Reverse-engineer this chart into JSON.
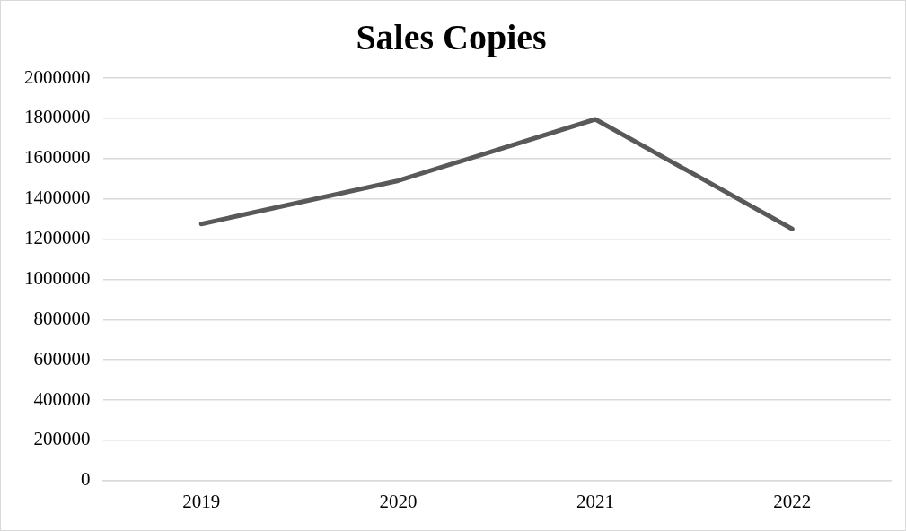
{
  "chart_data": {
    "type": "line",
    "title": "Sales Copies",
    "categories": [
      "2019",
      "2020",
      "2021",
      "2022"
    ],
    "series": [
      {
        "color": "#595959",
        "values": [
          1275000,
          1490000,
          1795000,
          1250000
        ]
      }
    ],
    "ylim": [
      0,
      2000000
    ],
    "yticks": [
      0,
      200000,
      400000,
      600000,
      800000,
      1000000,
      1200000,
      1400000,
      1600000,
      1800000,
      2000000
    ],
    "grid": "y",
    "legend": false,
    "marker": "none",
    "line_style": "solid"
  }
}
